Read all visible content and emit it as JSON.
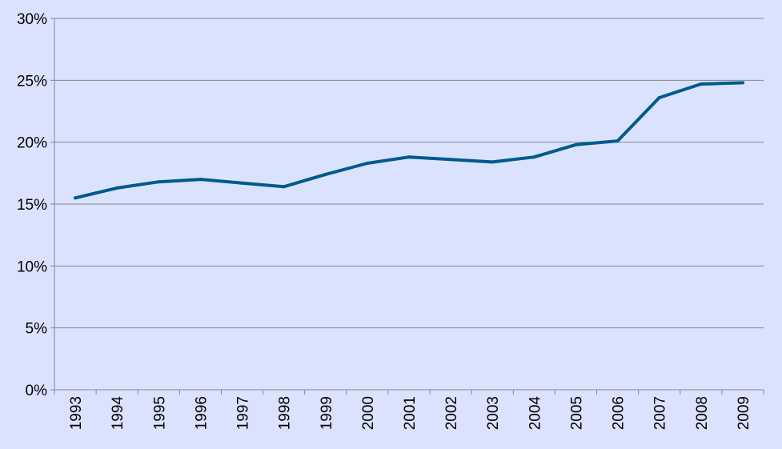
{
  "colors": {
    "background": "#dbe2fe",
    "line": "#005a8c",
    "grid": "#878787",
    "axis": "#878787"
  },
  "chart_data": {
    "type": "line",
    "title": "",
    "xlabel": "",
    "ylabel": "",
    "categories": [
      "1993",
      "1994",
      "1995",
      "1996",
      "1997",
      "1998",
      "1999",
      "2000",
      "2001",
      "2002",
      "2003",
      "2004",
      "2005",
      "2006",
      "2007",
      "2008",
      "2009"
    ],
    "y_ticks": [
      "0%",
      "5%",
      "10%",
      "15%",
      "20%",
      "25%",
      "30%"
    ],
    "ylim": [
      0,
      30
    ],
    "grid": true,
    "legend": "none",
    "series": [
      {
        "values": [
          15.5,
          16.3,
          16.8,
          17.0,
          16.7,
          16.4,
          17.4,
          18.3,
          18.8,
          18.6,
          18.4,
          18.8,
          19.8,
          20.1,
          23.6,
          24.7,
          24.8
        ]
      }
    ]
  }
}
